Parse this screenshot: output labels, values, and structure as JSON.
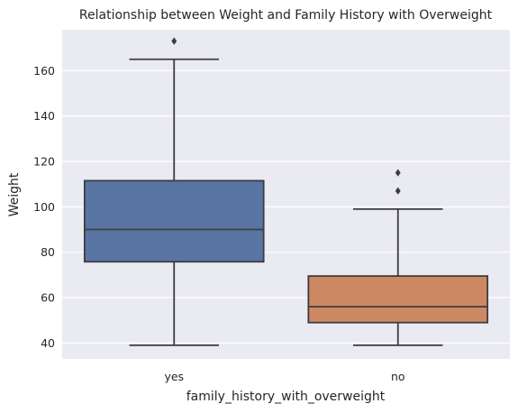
{
  "chart_data": {
    "type": "boxplot",
    "title": "Relationship between Weight and Family History with Overweight",
    "xlabel": "family_history_with_overweight",
    "ylabel": "Weight",
    "ylim": [
      33,
      178
    ],
    "yticks": [
      40,
      60,
      80,
      100,
      120,
      140,
      160
    ],
    "grid": true,
    "categories": [
      "yes",
      "no"
    ],
    "boxes": [
      {
        "category": "yes",
        "whisker_low": 39,
        "q1": 75.8,
        "median": 90,
        "q3": 111.5,
        "whisker_high": 165,
        "outliers": [
          173
        ],
        "color": "#5875a4"
      },
      {
        "category": "no",
        "whisker_low": 39,
        "q1": 49,
        "median": 56,
        "q3": 69.5,
        "whisker_high": 99,
        "outliers": [
          107,
          115
        ],
        "color": "#cc8963"
      }
    ],
    "colors": {
      "background": "#eaeaf2",
      "grid": "#ffffff",
      "line": "#3d3d3d"
    }
  }
}
